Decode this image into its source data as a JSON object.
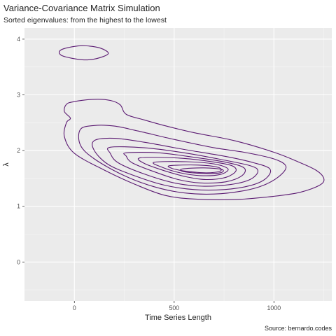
{
  "chart_data": {
    "type": "contour",
    "title": "Variance-Covariance Matrix Simulation",
    "subtitle": "Sorted eigenvalues: from the highest to the lowest",
    "caption": "Source: bernardo.codes",
    "xlabel": "Time Series Length",
    "ylabel": "λ",
    "xlim": [
      -250,
      1290
    ],
    "ylim": [
      -0.7,
      4.2
    ],
    "x_ticks": [
      0,
      500,
      1000
    ],
    "x_tick_labels": [
      "0",
      "500",
      "1000"
    ],
    "y_ticks": [
      0,
      1,
      2,
      3,
      4
    ],
    "y_tick_labels": [
      "0",
      "1",
      "2",
      "3",
      "4"
    ],
    "grid": true,
    "panel_color": "#ebebeb",
    "contour_color": "#5b1a72",
    "contours": [
      {
        "level": 1,
        "points": [
          [
            60,
            3.88
          ],
          [
            130,
            3.84
          ],
          [
            170,
            3.74
          ],
          [
            110,
            3.65
          ],
          [
            40,
            3.63
          ],
          [
            -60,
            3.7
          ],
          [
            -70,
            3.8
          ],
          [
            0,
            3.87
          ],
          [
            60,
            3.88
          ]
        ]
      },
      {
        "level": 2,
        "points": [
          [
            -40,
            2.83
          ],
          [
            0,
            2.88
          ],
          [
            100,
            2.92
          ],
          [
            180,
            2.9
          ],
          [
            230,
            2.82
          ],
          [
            260,
            2.65
          ],
          [
            350,
            2.55
          ],
          [
            450,
            2.45
          ],
          [
            600,
            2.32
          ],
          [
            800,
            2.18
          ],
          [
            1000,
            1.97
          ],
          [
            1120,
            1.8
          ],
          [
            1210,
            1.65
          ],
          [
            1250,
            1.5
          ],
          [
            1230,
            1.38
          ],
          [
            1130,
            1.25
          ],
          [
            1000,
            1.18
          ],
          [
            800,
            1.12
          ],
          [
            600,
            1.13
          ],
          [
            450,
            1.2
          ],
          [
            300,
            1.4
          ],
          [
            150,
            1.65
          ],
          [
            0,
            1.95
          ],
          [
            -50,
            2.25
          ],
          [
            -40,
            2.5
          ],
          [
            -20,
            2.58
          ],
          [
            -50,
            2.7
          ],
          [
            -40,
            2.83
          ]
        ]
      },
      {
        "level": 3,
        "points": [
          [
            30,
            2.38
          ],
          [
            100,
            2.45
          ],
          [
            200,
            2.44
          ],
          [
            320,
            2.35
          ],
          [
            500,
            2.2
          ],
          [
            700,
            2.05
          ],
          [
            850,
            1.97
          ],
          [
            1000,
            1.85
          ],
          [
            1060,
            1.72
          ],
          [
            1030,
            1.55
          ],
          [
            950,
            1.38
          ],
          [
            850,
            1.28
          ],
          [
            700,
            1.22
          ],
          [
            550,
            1.24
          ],
          [
            400,
            1.35
          ],
          [
            250,
            1.55
          ],
          [
            100,
            1.85
          ],
          [
            30,
            2.1
          ],
          [
            30,
            2.38
          ]
        ]
      },
      {
        "level": 4,
        "points": [
          [
            100,
            2.18
          ],
          [
            200,
            2.22
          ],
          [
            350,
            2.15
          ],
          [
            550,
            2.02
          ],
          [
            750,
            1.9
          ],
          [
            900,
            1.78
          ],
          [
            980,
            1.67
          ],
          [
            960,
            1.5
          ],
          [
            880,
            1.37
          ],
          [
            750,
            1.3
          ],
          [
            600,
            1.3
          ],
          [
            450,
            1.38
          ],
          [
            300,
            1.55
          ],
          [
            170,
            1.75
          ],
          [
            100,
            2.0
          ],
          [
            100,
            2.18
          ]
        ]
      },
      {
        "level": 5,
        "points": [
          [
            180,
            2.06
          ],
          [
            350,
            2.05
          ],
          [
            550,
            1.96
          ],
          [
            720,
            1.85
          ],
          [
            880,
            1.73
          ],
          [
            920,
            1.63
          ],
          [
            880,
            1.48
          ],
          [
            780,
            1.39
          ],
          [
            640,
            1.36
          ],
          [
            500,
            1.42
          ],
          [
            350,
            1.58
          ],
          [
            220,
            1.78
          ],
          [
            180,
            1.95
          ],
          [
            180,
            2.06
          ]
        ]
      },
      {
        "level": 6,
        "points": [
          [
            260,
            1.96
          ],
          [
            420,
            1.96
          ],
          [
            600,
            1.88
          ],
          [
            760,
            1.79
          ],
          [
            850,
            1.69
          ],
          [
            840,
            1.55
          ],
          [
            760,
            1.44
          ],
          [
            630,
            1.42
          ],
          [
            520,
            1.48
          ],
          [
            400,
            1.62
          ],
          [
            290,
            1.78
          ],
          [
            260,
            1.9
          ],
          [
            260,
            1.96
          ]
        ]
      },
      {
        "level": 7,
        "points": [
          [
            330,
            1.87
          ],
          [
            500,
            1.87
          ],
          [
            650,
            1.82
          ],
          [
            780,
            1.74
          ],
          [
            810,
            1.64
          ],
          [
            760,
            1.52
          ],
          [
            660,
            1.48
          ],
          [
            560,
            1.53
          ],
          [
            450,
            1.64
          ],
          [
            350,
            1.77
          ],
          [
            330,
            1.87
          ]
        ]
      },
      {
        "level": 8,
        "points": [
          [
            400,
            1.79
          ],
          [
            560,
            1.8
          ],
          [
            700,
            1.76
          ],
          [
            770,
            1.67
          ],
          [
            730,
            1.57
          ],
          [
            630,
            1.55
          ],
          [
            530,
            1.6
          ],
          [
            440,
            1.7
          ],
          [
            400,
            1.79
          ]
        ]
      },
      {
        "level": 9,
        "points": [
          [
            480,
            1.73
          ],
          [
            620,
            1.74
          ],
          [
            720,
            1.7
          ],
          [
            730,
            1.63
          ],
          [
            660,
            1.6
          ],
          [
            560,
            1.63
          ],
          [
            490,
            1.68
          ],
          [
            480,
            1.73
          ]
        ]
      },
      {
        "level": 10,
        "points": [
          [
            540,
            1.67
          ],
          [
            650,
            1.69
          ],
          [
            740,
            1.66
          ],
          [
            730,
            1.6
          ],
          [
            640,
            1.59
          ],
          [
            550,
            1.62
          ],
          [
            540,
            1.67
          ]
        ]
      }
    ]
  }
}
